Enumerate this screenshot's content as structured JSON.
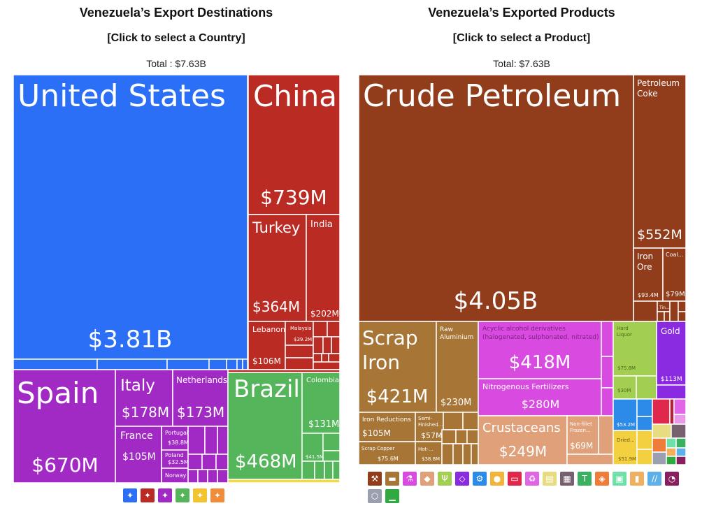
{
  "left": {
    "title": "Venezuela’s Export Destinations",
    "subtitle": "[Click to select a Country]",
    "total": "Total : $7.63B"
  },
  "right": {
    "title": "Venezuela’s Exported Products",
    "subtitle": "[Click to select a Product]",
    "total": "Total: $7.63B"
  },
  "colors": {
    "blue": "#2c6ff7",
    "red": "#b92b23",
    "purple": "#a12ac4",
    "green": "#55b55a",
    "yellow": "#f4d943",
    "brown": "#913c1a",
    "ochre": "#a77535",
    "magenta": "#d94be0",
    "salmon": "#e0a07a",
    "lime": "#a2cf52",
    "violet": "#8a2be2"
  },
  "chart_data": [
    {
      "type": "treemap",
      "title": "Venezuela’s Export Destinations",
      "total": "$7.63B",
      "items": [
        {
          "name": "United States",
          "value": "$3.81B",
          "color": "#2c6ff7"
        },
        {
          "name": "China",
          "value": "$739M",
          "color": "#b92b23"
        },
        {
          "name": "Turkey",
          "value": "$364M",
          "color": "#b92b23"
        },
        {
          "name": "India",
          "value": "$202M",
          "color": "#b92b23"
        },
        {
          "name": "Lebanon",
          "value": "$106M",
          "color": "#b92b23"
        },
        {
          "name": "Malaysia",
          "value": "$39.2M",
          "color": "#b92b23"
        },
        {
          "name": "Spain",
          "value": "$670M",
          "color": "#a12ac4"
        },
        {
          "name": "Italy",
          "value": "$178M",
          "color": "#a12ac4"
        },
        {
          "name": "Netherlands",
          "value": "$173M",
          "color": "#a12ac4"
        },
        {
          "name": "France",
          "value": "$105M",
          "color": "#a12ac4"
        },
        {
          "name": "Portugal",
          "value": "$38.8M",
          "color": "#a12ac4"
        },
        {
          "name": "Poland",
          "value": "$32.5M",
          "color": "#a12ac4"
        },
        {
          "name": "Norway",
          "value": "",
          "color": "#a12ac4"
        },
        {
          "name": "Brazil",
          "value": "$468M",
          "color": "#55b55a"
        },
        {
          "name": "Colombia",
          "value": "$131M",
          "color": "#55b55a"
        },
        {
          "name": "",
          "value": "$41.5M",
          "color": "#55b55a"
        }
      ]
    },
    {
      "type": "treemap",
      "title": "Venezuela’s Exported Products",
      "total": "$7.63B",
      "items": [
        {
          "name": "Crude Petroleum",
          "value": "$4.05B",
          "color": "#913c1a"
        },
        {
          "name": "Petroleum Coke",
          "value": "$552M",
          "color": "#913c1a"
        },
        {
          "name": "Iron Ore",
          "value": "$93.4M",
          "color": "#913c1a"
        },
        {
          "name": "Coal...",
          "value": "$79M",
          "color": "#913c1a"
        },
        {
          "name": "Tin...",
          "value": "",
          "color": "#913c1a"
        },
        {
          "name": "Scrap Iron",
          "value": "$421M",
          "color": "#a77535"
        },
        {
          "name": "Raw Aluminium",
          "value": "$230M",
          "color": "#a77535"
        },
        {
          "name": "Iron Reductions",
          "value": "$105M",
          "color": "#a77535"
        },
        {
          "name": "Semi-Finished...",
          "value": "$57M",
          "color": "#a77535"
        },
        {
          "name": "Scrap Copper",
          "value": "$75.6M",
          "color": "#a77535"
        },
        {
          "name": "Hot-...",
          "value": "$38.8M",
          "color": "#a77535"
        },
        {
          "name": "Acyclic alcohol derivatives (halogenated, sulphonated, nitrated)",
          "value": "$418M",
          "color": "#d94be0"
        },
        {
          "name": "Nitrogenous Fertilizers",
          "value": "$280M",
          "color": "#d94be0"
        },
        {
          "name": "Crustaceans",
          "value": "$249M",
          "color": "#e0a07a"
        },
        {
          "name": "Non-fillet Frozen...",
          "value": "$69M",
          "color": "#e0a07a"
        },
        {
          "name": "Hard Liquor",
          "value": "$75.8M",
          "color": "#a2cf52"
        },
        {
          "name": "",
          "value": "$30M",
          "color": "#a2cf52"
        },
        {
          "name": "Gold",
          "value": "$113M",
          "color": "#8a2be2"
        },
        {
          "name": "",
          "value": "$53.2M",
          "color": "#2c8ae8"
        },
        {
          "name": "Dried...",
          "value": "$51.9M",
          "color": "#f2d040"
        }
      ]
    }
  ],
  "left_labels": {
    "us": "United States",
    "us_v": "$3.81B",
    "china": "China",
    "china_v": "$739M",
    "turkey": "Turkey",
    "turkey_v": "$364M",
    "india": "India",
    "india_v": "$202M",
    "lebanon": "Lebanon",
    "lebanon_v": "$106M",
    "malaysia": "Malaysia",
    "malaysia_v": "$39.2M",
    "spain": "Spain",
    "spain_v": "$670M",
    "italy": "Italy",
    "italy_v": "$178M",
    "netherlands": "Netherlands",
    "netherlands_v": "$173M",
    "france": "France",
    "france_v": "$105M",
    "portugal": "Portugal",
    "portugal_v": "$38.8M",
    "poland": "Poland",
    "poland_v": "$32.5M",
    "norway": "Norway",
    "brazil": "Brazil",
    "brazil_v": "$468M",
    "colombia": "Colombia",
    "colombia_v": "$131M",
    "small_green_v": "$41.5M"
  },
  "right_labels": {
    "crude_1": "Crude Petroleum",
    "crude_v": "$4.05B",
    "coke_1": "Petroleum",
    "coke_2": "Coke",
    "coke_v": "$552M",
    "ironore_1": "Iron",
    "ironore_2": "Ore",
    "ironore_v": "$93.4M",
    "coal": "Coal...",
    "coal_v": "$79M",
    "tin": "Tin...",
    "scrap_1": "Scrap",
    "scrap_2": "Iron",
    "scrap_v": "$421M",
    "alu_1": "Raw",
    "alu_2": "Aluminium",
    "alu_v": "$230M",
    "ironred": "Iron Reductions",
    "ironred_v": "$105M",
    "semi_1": "Semi-",
    "semi_2": "Finished...",
    "semi_v": "$57M",
    "scrapcu": "Scrap Copper",
    "scrapcu_v": "$75.6M",
    "hot": "Hot-...",
    "hot_v": "$38.8M",
    "acyclic_1": "Acyclic alcohol derivatives",
    "acyclic_2": "(halogenated, sulphonated, nitrated)",
    "acyclic_v": "$418M",
    "nitro": "Nitrogenous Fertilizers",
    "nitro_v": "$280M",
    "crust": "Crustaceans",
    "crust_v": "$249M",
    "nonfillet_1": "Non-fillet",
    "nonfillet_2": "Frozen...",
    "nonfillet_v": "$69M",
    "liquor_1": "Hard",
    "liquor_2": "Liquor",
    "liquor_v": "$75.8M",
    "lime2_v": "$30M",
    "gold": "Gold",
    "gold_v": "$113M",
    "blue_v": "$53.2M",
    "dried": "Dried...",
    "dried_v": "$51.9M"
  },
  "left_icons": [
    {
      "name": "north-america-icon",
      "glyph": "✦",
      "color": "#2c6ff7"
    },
    {
      "name": "asia-icon",
      "glyph": "✦",
      "color": "#b92b23"
    },
    {
      "name": "europe-icon",
      "glyph": "✦",
      "color": "#a12ac4"
    },
    {
      "name": "south-america-icon",
      "glyph": "✦",
      "color": "#55b55a"
    },
    {
      "name": "africa-icon",
      "glyph": "✦",
      "color": "#f4c430"
    },
    {
      "name": "oceania-icon",
      "glyph": "✦",
      "color": "#f08c3a"
    }
  ],
  "right_icons": [
    {
      "name": "mineral-products-icon",
      "glyph": "⚒",
      "color": "#913c1a"
    },
    {
      "name": "metals-icon",
      "glyph": "▬",
      "color": "#a77535"
    },
    {
      "name": "chemical-products-icon",
      "glyph": "⚗",
      "color": "#d94be0"
    },
    {
      "name": "animal-products-icon",
      "glyph": "◆",
      "color": "#e0a07a"
    },
    {
      "name": "foodstuffs-icon",
      "glyph": "Ψ",
      "color": "#a2cf52"
    },
    {
      "name": "precious-metals-icon",
      "glyph": "◇",
      "color": "#8a2be2"
    },
    {
      "name": "machines-icon",
      "glyph": "⚙",
      "color": "#2c8ae8"
    },
    {
      "name": "vegetable-products-icon",
      "glyph": "●",
      "color": "#f2b53a"
    },
    {
      "name": "plastics-icon",
      "glyph": "▭",
      "color": "#e0284c"
    },
    {
      "name": "paper-goods-icon",
      "glyph": "♻",
      "color": "#e066e6"
    },
    {
      "name": "animal-fats-icon",
      "glyph": "▤",
      "color": "#e8dc80"
    },
    {
      "name": "miscellaneous-icon",
      "glyph": "▦",
      "color": "#776070"
    },
    {
      "name": "textiles-icon",
      "glyph": "T",
      "color": "#3ab060"
    },
    {
      "name": "stone-and-glass-icon",
      "glyph": "◈",
      "color": "#f07c3a"
    },
    {
      "name": "animal-hides-icon",
      "glyph": "▣",
      "color": "#6fe0a8"
    },
    {
      "name": "wood-products-icon",
      "glyph": "▮",
      "color": "#f0b060"
    },
    {
      "name": "transportation-icon",
      "glyph": "∕∕",
      "color": "#5eb0e8"
    },
    {
      "name": "instruments-icon",
      "glyph": "◔",
      "color": "#8a1f5f"
    },
    {
      "name": "weapons-icon",
      "glyph": "⬡",
      "color": "#9aa0b0"
    },
    {
      "name": "footwear-icon",
      "glyph": "▁",
      "color": "#2faa40"
    }
  ]
}
